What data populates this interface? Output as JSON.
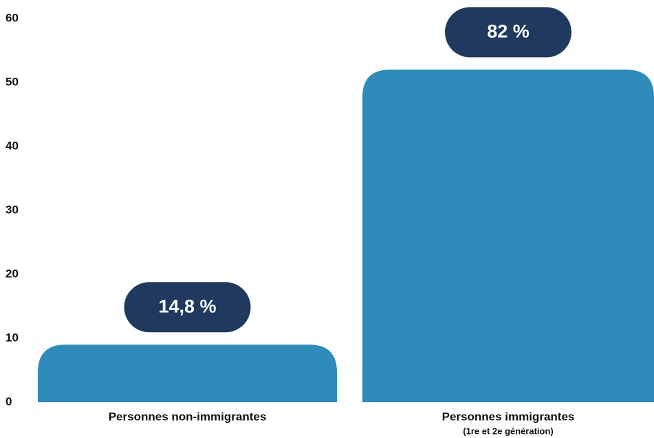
{
  "chart_data": {
    "type": "bar",
    "categories": [
      [
        "Personnes non-immigrantes"
      ],
      [
        "Personnes immigrantes",
        "(1re et 2e génération)"
      ]
    ],
    "values": [
      9,
      52
    ],
    "annotations": [
      "14,8 %",
      "82 %"
    ],
    "color": "#2e8bba",
    "annotation_color": "#1f3a5e",
    "ylim": [
      0,
      60
    ],
    "yticks": [
      0,
      10,
      20,
      30,
      40,
      50,
      60
    ],
    "grid": false
  }
}
